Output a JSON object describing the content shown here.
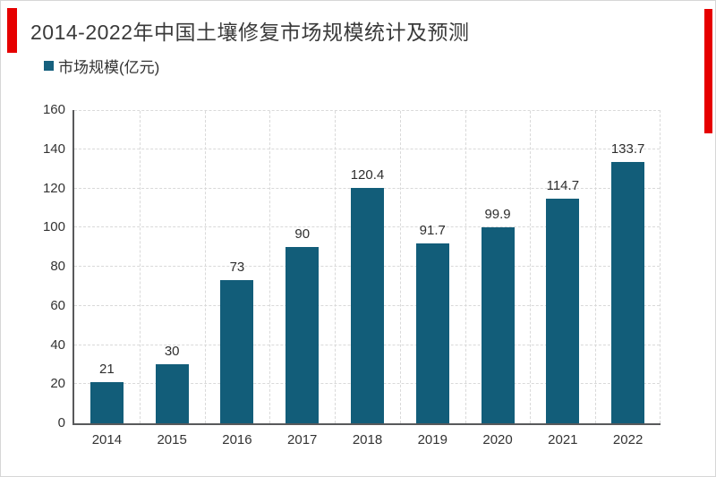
{
  "page": {
    "background": "#ffffff",
    "border_color": "#d6d6d6"
  },
  "header": {
    "title": "2014-2022年中国土壤修复市场规模统计及预测",
    "accent_color": "#e60000"
  },
  "legend": {
    "label": "市场规模(亿元)",
    "swatch_color": "#16607e"
  },
  "chart_data": {
    "type": "bar",
    "title": "2014-2022年中国土壤修复市场规模统计及预测",
    "series_name": "市场规模(亿元)",
    "categories": [
      "2014",
      "2015",
      "2016",
      "2017",
      "2018",
      "2019",
      "2020",
      "2021",
      "2022"
    ],
    "values": [
      21,
      30,
      73,
      90,
      120.4,
      91.7,
      99.9,
      114.7,
      133.7
    ],
    "value_labels": [
      "21",
      "30",
      "73",
      "90",
      "120.4",
      "91.7",
      "99.9",
      "114.7",
      "133.7"
    ],
    "xlabel": "",
    "ylabel": "",
    "ylim": [
      0,
      160
    ],
    "yticks": [
      0,
      20,
      40,
      60,
      80,
      100,
      120,
      140,
      160
    ],
    "grid": "dashed",
    "legend_position": "top-left",
    "bar_color": "#125d79",
    "axis_color": "#58595b",
    "gridline_color": "#d9d9d9"
  }
}
